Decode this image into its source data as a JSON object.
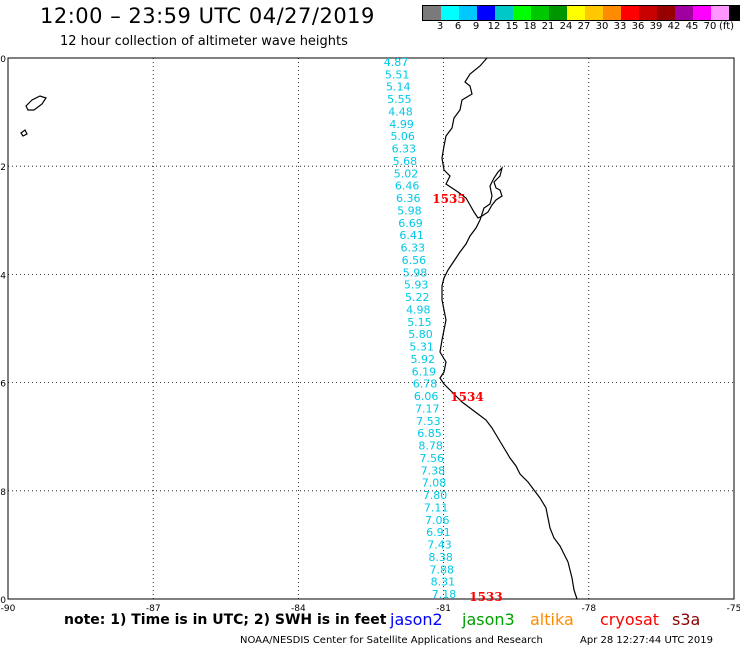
{
  "header": {
    "title": "12:00 – 23:59 UTC 04/27/2019",
    "subtitle": "12 hour collection of altimeter wave heights"
  },
  "legend": {
    "unit": "(ft)",
    "labels": [
      "3",
      "6",
      "9",
      "12",
      "15",
      "18",
      "21",
      "24",
      "27",
      "30",
      "33",
      "36",
      "39",
      "42",
      "45",
      "70"
    ],
    "colors": [
      "#7a7a7a",
      "#00ffff",
      "#00c8ff",
      "#0000ff",
      "#00c8c8",
      "#00ff00",
      "#00c800",
      "#009600",
      "#ffff00",
      "#ffc800",
      "#ff8c00",
      "#ff0000",
      "#c80000",
      "#960000",
      "#a000a0",
      "#ff00ff",
      "#ff96ff",
      "#000000"
    ]
  },
  "map": {
    "lon_ticks": [
      "-90",
      "-87",
      "-84",
      "-81",
      "-78",
      "-75"
    ],
    "lat_ticks": [
      "0",
      "-2",
      "-4",
      "-6",
      "-8",
      "-10"
    ],
    "wave_color": "#00c8e6",
    "track_label_color": "#ff0000",
    "wave_heights": [
      "4.87",
      "5.51",
      "5.14",
      "5.55",
      "4.48",
      "4.99",
      "5.06",
      "6.33",
      "5.68",
      "5.02",
      "6.46",
      "6.36",
      "5.98",
      "6.69",
      "6.41",
      "6.33",
      "6.56",
      "5.98",
      "5.93",
      "5.22",
      "4.98",
      "5.15",
      "5.80",
      "5.31",
      "5.92",
      "6.19",
      "6.78",
      "6.06",
      "7.17",
      "7.53",
      "6.85",
      "8.78",
      "7.56",
      "7.38",
      "7.08",
      "7.80",
      "7.11",
      "7.06",
      "6.91",
      "7.43",
      "8.38",
      "7.88",
      "8.31",
      "7.18"
    ],
    "track_labels": [
      "1535",
      "1534",
      "1533"
    ]
  },
  "bottom": {
    "note": "note:  1) Time is in UTC;  2) SWH is in feet",
    "satellites": [
      {
        "name": "jason2",
        "color": "#0000ff"
      },
      {
        "name": "jason3",
        "color": "#00a000"
      },
      {
        "name": "altika",
        "color": "#ff8c00"
      },
      {
        "name": "cryosat",
        "color": "#ff0000"
      },
      {
        "name": "s3a",
        "color": "#8b0000"
      }
    ],
    "credit": "NOAA/NESDIS Center for Satellite Applications and Research",
    "timestamp": "Apr 28 12:27:44 UTC 2019"
  }
}
